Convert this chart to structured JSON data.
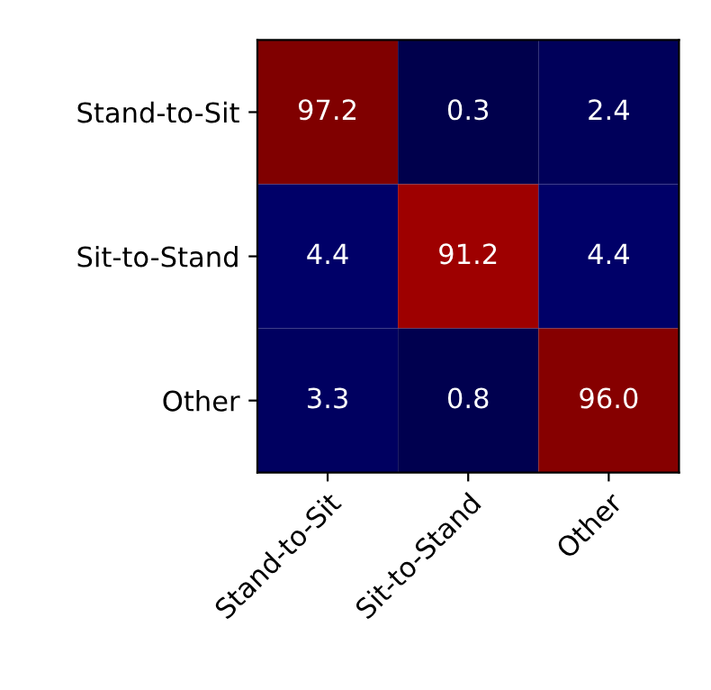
{
  "chart_data": {
    "type": "heatmap",
    "categories": [
      "Stand-to-Sit",
      "Sit-to-Stand",
      "Other"
    ],
    "y_categories": [
      "Stand-to-Sit",
      "Sit-to-Stand",
      "Other"
    ],
    "cells": [
      [
        97.2,
        0.3,
        2.4
      ],
      [
        4.4,
        91.2,
        4.4
      ],
      [
        3.3,
        0.8,
        96.0
      ]
    ],
    "cell_labels": [
      [
        "97.2",
        "0.3",
        "2.4"
      ],
      [
        "4.4",
        "91.2",
        "4.4"
      ],
      [
        "3.3",
        "0.8",
        "96.0"
      ]
    ]
  }
}
